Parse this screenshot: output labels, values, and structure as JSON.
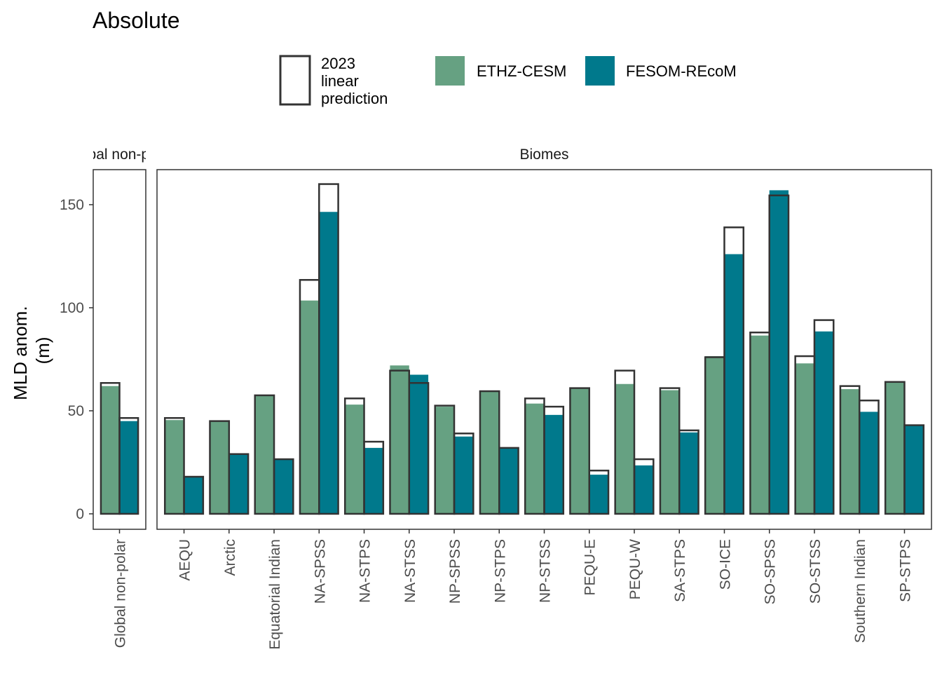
{
  "chart_data": {
    "type": "bar",
    "title": "Absolute",
    "ylabel": [
      "MLD anom.",
      "(m)"
    ],
    "xlabel": "",
    "ylim": [
      -7.5,
      167
    ],
    "yticks": [
      0,
      50,
      100,
      150
    ],
    "grid": false,
    "legend_position": "top",
    "legend": {
      "outline_label": [
        "2023",
        "linear",
        "prediction"
      ],
      "series": [
        {
          "name": "ETHZ-CESM",
          "color": "#66A182"
        },
        {
          "name": "FESOM-REcoM",
          "color": "#00798C"
        }
      ]
    },
    "panels": [
      {
        "strip": "Global non-polar",
        "strip_visible": "al non-p",
        "categories": [
          "Global non-polar"
        ],
        "series": [
          {
            "name": "ETHZ-CESM",
            "values": [
              62
            ],
            "prediction": [
              63.5
            ]
          },
          {
            "name": "FESOM-REcoM",
            "values": [
              45
            ],
            "prediction": [
              46.5
            ]
          }
        ]
      },
      {
        "strip": "Biomes",
        "strip_visible": "Biomes",
        "categories": [
          "AEQU",
          "Arctic",
          "Equatorial Indian",
          "NA-SPSS",
          "NA-STPS",
          "NA-STSS",
          "NP-SPSS",
          "NP-STPS",
          "NP-STSS",
          "PEQU-E",
          "PEQU-W",
          "SA-STPS",
          "SO-ICE",
          "SO-SPSS",
          "SO-STSS",
          "Southern Indian",
          "SP-STPS"
        ],
        "series": [
          {
            "name": "ETHZ-CESM",
            "values": [
              45.5,
              45,
              57.5,
              103.5,
              53,
              72,
              52,
              59.5,
              53.5,
              61,
              63,
              60,
              76.5,
              86.5,
              73,
              60.5,
              64
            ],
            "prediction": [
              46.5,
              45,
              57.5,
              113.5,
              56,
              69.5,
              52.5,
              59.5,
              56,
              61,
              69.5,
              61,
              76,
              88,
              76.5,
              62,
              64
            ]
          },
          {
            "name": "FESOM-REcoM",
            "values": [
              18,
              29,
              26.5,
              146.5,
              32,
              67.5,
              37.5,
              32,
              48,
              19,
              23.5,
              39.5,
              126,
              157,
              88.5,
              49.5,
              43
            ],
            "prediction": [
              18,
              29,
              26.5,
              160,
              35,
              63.5,
              39,
              32,
              52,
              21,
              26.5,
              40.5,
              139,
              154.5,
              94,
              55,
              43
            ]
          }
        ]
      }
    ]
  }
}
